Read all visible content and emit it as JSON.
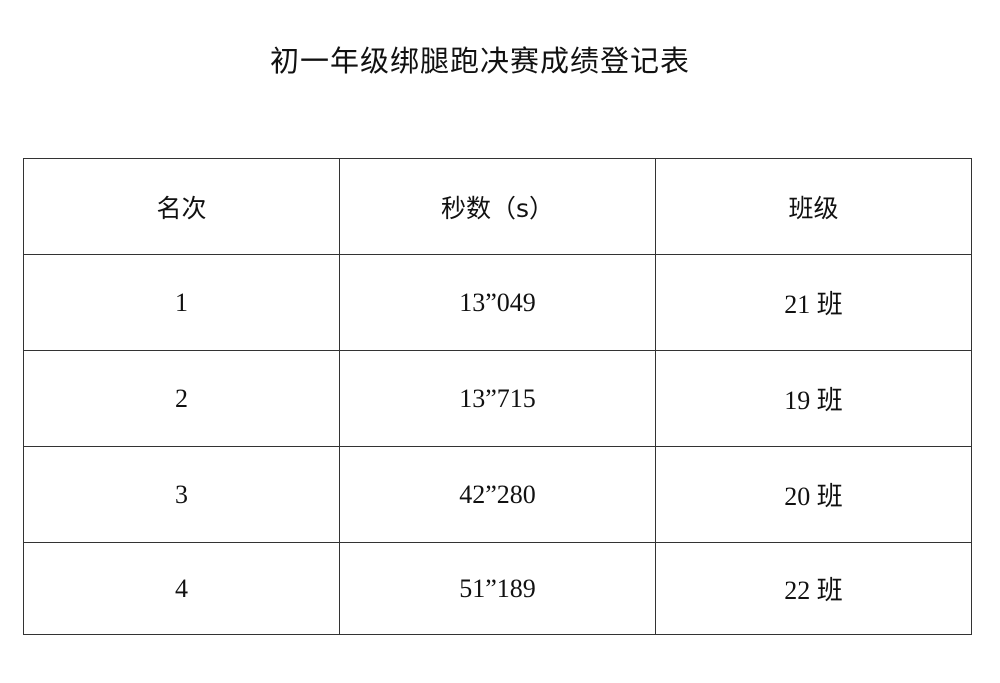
{
  "title": "初一年级绑腿跑决赛成绩登记表",
  "table": {
    "headers": [
      "名次",
      "秒数（s）",
      "班级"
    ],
    "rows": [
      [
        "1",
        "13”049",
        "21 班"
      ],
      [
        "2",
        "13”715",
        "19 班"
      ],
      [
        "3",
        "42”280",
        "20 班"
      ],
      [
        "4",
        "51”189",
        "22 班"
      ]
    ]
  }
}
